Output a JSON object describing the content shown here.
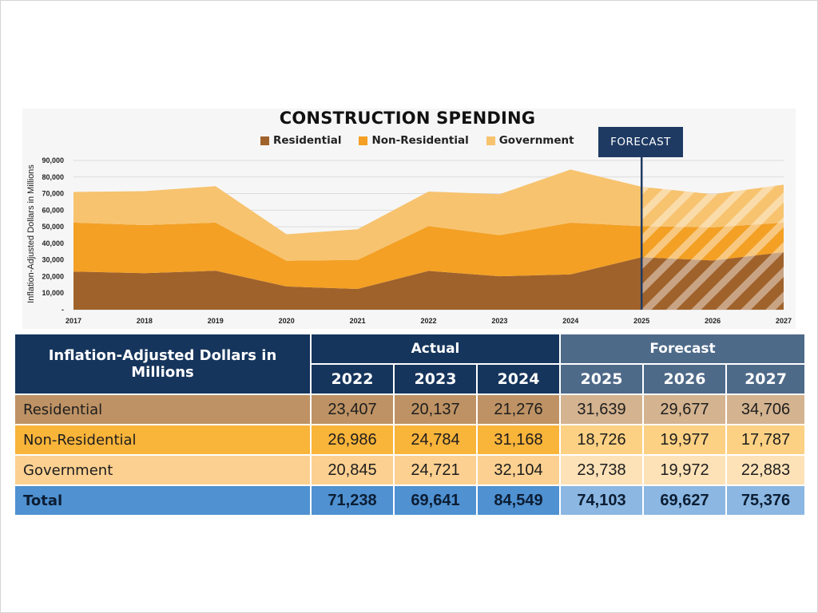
{
  "chart_data": {
    "type": "area",
    "title": "CONSTRUCTION SPENDING",
    "ylabel": "Inflation-Adjusted  Dollars in Millions",
    "xlabel": "",
    "categories": [
      "2017",
      "2018",
      "2019",
      "2020",
      "2021",
      "2022",
      "2023",
      "2024",
      "2025",
      "2026",
      "2027"
    ],
    "stacked": true,
    "ylim": [
      0,
      90000
    ],
    "yticks": [
      0,
      10000,
      20000,
      30000,
      40000,
      50000,
      60000,
      70000,
      80000,
      90000
    ],
    "ytick_labels": [
      "-",
      "10,000",
      "20,000",
      "30,000",
      "40,000",
      "50,000",
      "60,000",
      "70,000",
      "80,000",
      "90,000"
    ],
    "forecast_start": "2025",
    "forecast_label": "FORECAST",
    "grid": true,
    "legend_position": "top",
    "series": [
      {
        "name": "Residential",
        "color": "#a0622b",
        "values": [
          23000,
          22000,
          23500,
          14000,
          12500,
          23407,
          20137,
          21276,
          31639,
          29677,
          34706
        ]
      },
      {
        "name": "Non-Residential",
        "color": "#f3a024",
        "values": [
          29500,
          29000,
          29000,
          15500,
          17500,
          26986,
          24784,
          31168,
          18726,
          19977,
          17787
        ]
      },
      {
        "name": "Government",
        "color": "#f7c36f",
        "values": [
          18500,
          20500,
          22000,
          16000,
          18500,
          20845,
          24721,
          32104,
          23738,
          19972,
          22883
        ]
      }
    ]
  },
  "table": {
    "header_label": "Inflation-Adjusted Dollars in Millions",
    "actual_label": "Actual",
    "forecast_label": "Forecast",
    "years": [
      "2022",
      "2023",
      "2024",
      "2025",
      "2026",
      "2027"
    ],
    "rows": [
      {
        "label": "Residential",
        "values": [
          "23,407",
          "20,137",
          "21,276",
          "31,639",
          "29,677",
          "34,706"
        ]
      },
      {
        "label": "Non-Residential",
        "values": [
          "26,986",
          "24,784",
          "31,168",
          "18,726",
          "19,977",
          "17,787"
        ]
      },
      {
        "label": "Government",
        "values": [
          "20,845",
          "24,721",
          "32,104",
          "23,738",
          "19,972",
          "22,883"
        ]
      }
    ],
    "total": {
      "label": "Total",
      "values": [
        "71,238",
        "69,641",
        "84,549",
        "74,103",
        "69,627",
        "75,376"
      ]
    }
  }
}
